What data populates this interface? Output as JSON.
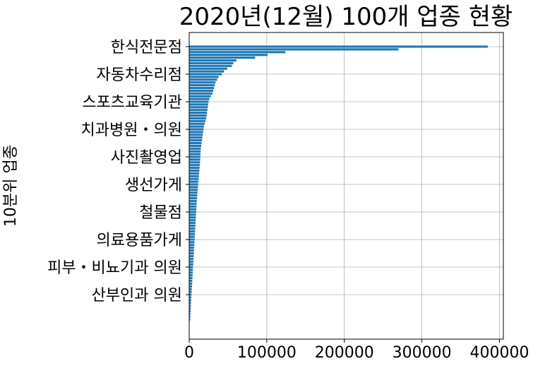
{
  "chart_data": {
    "type": "bar",
    "orientation": "horizontal",
    "title": "2020년(12월) 100개 업종 현황",
    "xlabel": "",
    "ylabel": "10분위 업종",
    "xlim": [
      0,
      405000
    ],
    "xticks": [
      0,
      100000,
      200000,
      300000,
      400000
    ],
    "xtick_labels": [
      "0",
      "100000",
      "200000",
      "300000",
      "400000"
    ],
    "grid": true,
    "bar_color": "#1f77b4",
    "ytick_labels": [
      "한식전문점",
      "자동차수리점",
      "스포츠교육기관",
      "치과병원・의원",
      "사진촬영업",
      "생선가게",
      "철물점",
      "의료용품가게",
      "피부・비뇨기과 의원",
      "산부인과 의원"
    ],
    "ytick_positions": [
      0,
      10,
      20,
      30,
      40,
      50,
      60,
      70,
      80,
      90
    ],
    "values": [
      385000,
      270000,
      124000,
      101000,
      85000,
      61000,
      57000,
      55000,
      49000,
      45000,
      42000,
      38000,
      36000,
      34000,
      33000,
      32000,
      31000,
      30000,
      28000,
      26000,
      25000,
      24500,
      24000,
      23500,
      23000,
      22500,
      22000,
      21000,
      20000,
      19000,
      18500,
      18000,
      17500,
      17000,
      16500,
      16000,
      15500,
      15000,
      14800,
      14600,
      14400,
      14200,
      14000,
      13700,
      13400,
      13100,
      12800,
      12500,
      12200,
      11900,
      11600,
      11300,
      11000,
      10700,
      10400,
      10100,
      9800,
      9600,
      9400,
      9200,
      9000,
      8800,
      8600,
      8400,
      8200,
      8000,
      7800,
      7600,
      7400,
      7200,
      7000,
      6800,
      6600,
      6400,
      6200,
      6000,
      5800,
      5600,
      5400,
      5200,
      5000,
      4800,
      4600,
      4400,
      4200,
      4000,
      3800,
      3600,
      3400,
      3200,
      3000,
      2800,
      2600,
      2400,
      2200,
      2000,
      1800,
      1600,
      1400,
      1200
    ]
  }
}
